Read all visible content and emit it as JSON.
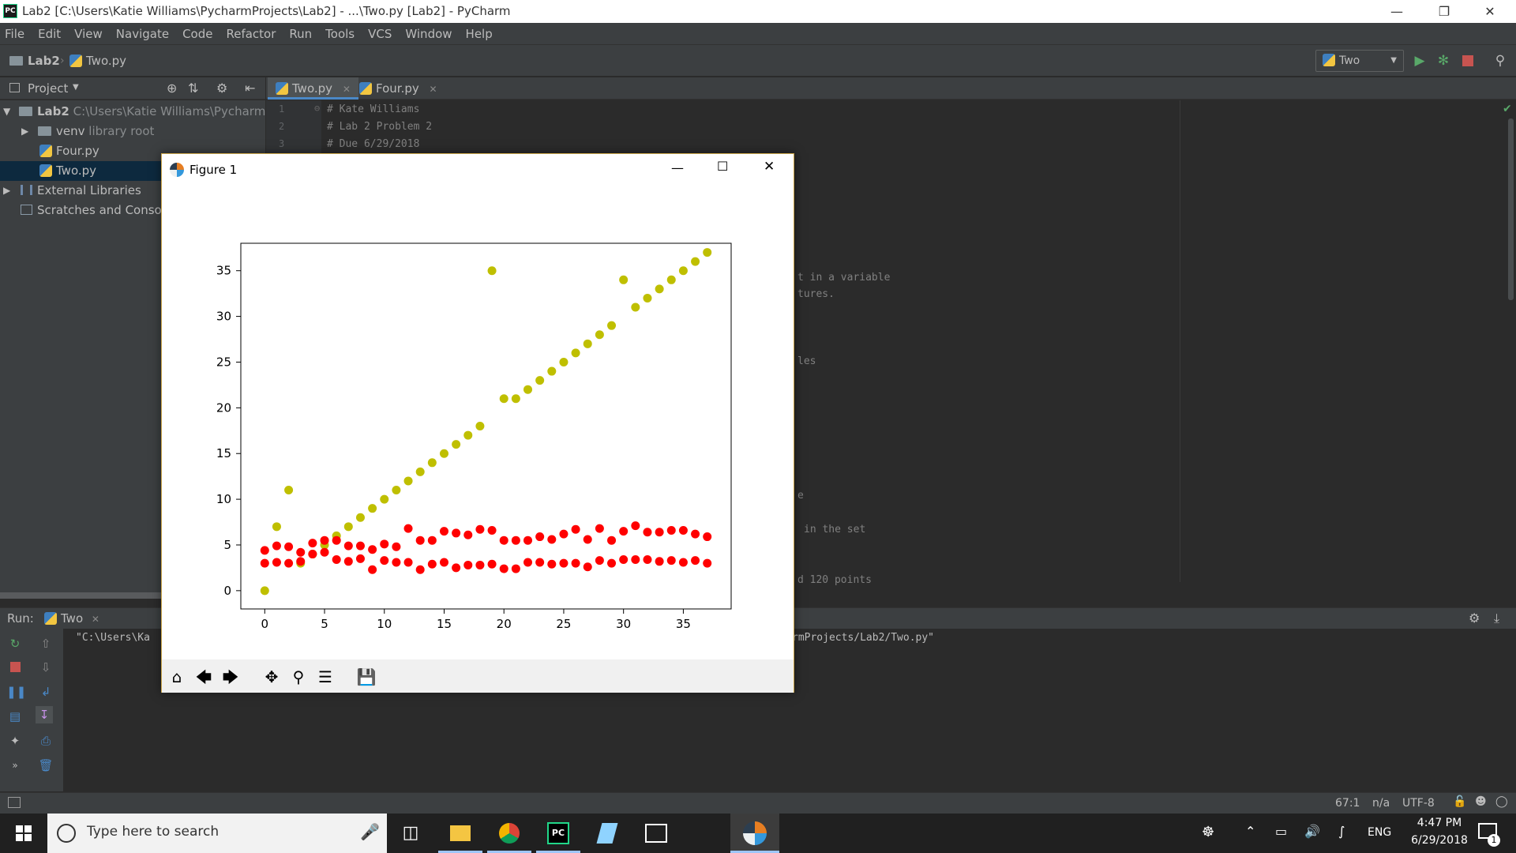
{
  "window": {
    "title": "Lab2 [C:\\Users\\Katie Williams\\PycharmProjects\\Lab2] - ...\\Two.py [Lab2] - PyCharm",
    "app_icon_label": "PC"
  },
  "menu": [
    "File",
    "Edit",
    "View",
    "Navigate",
    "Code",
    "Refactor",
    "Run",
    "Tools",
    "VCS",
    "Window",
    "Help"
  ],
  "navbar": {
    "crumb_project": "Lab2",
    "crumb_file": "Two.py",
    "run_config": "Two"
  },
  "project_panel": {
    "header": "Project",
    "items": [
      {
        "label": "Lab2",
        "path": "C:\\Users\\Katie Williams\\PycharmProje"
      },
      {
        "label": "venv",
        "extra": "library root"
      },
      {
        "label": "Four.py"
      },
      {
        "label": "Two.py"
      },
      {
        "label": "External Libraries"
      },
      {
        "label": "Scratches and Consoles"
      }
    ]
  },
  "editor": {
    "tabs": [
      {
        "label": "Two.py",
        "active": true
      },
      {
        "label": "Four.py",
        "active": false
      }
    ],
    "line_numbers": [
      "1",
      "2",
      "3"
    ],
    "lines": [
      "# Kate Williams",
      "# Lab 2 Problem 2",
      "# Due 6/29/2018"
    ],
    "fragments": [
      "t in a variable",
      "tures.",
      "les",
      "e",
      "in the set",
      "d 120 points"
    ]
  },
  "run_panel": {
    "label": "Run:",
    "tab": "Two",
    "output_left": "\"C:\\Users\\Ka",
    "output_right": "rmProjects/Lab2/Two.py\""
  },
  "status_bar": {
    "position": "67:1",
    "na": "n/a",
    "encoding": "UTF-8"
  },
  "taskbar": {
    "search_placeholder": "Type here to search",
    "language": "ENG",
    "time": "4:47 PM",
    "date": "6/29/2018",
    "notification_count": "1"
  },
  "figure": {
    "title": "Figure 1"
  },
  "chart_data": {
    "type": "scatter",
    "title": "",
    "xlabel": "",
    "ylabel": "",
    "xlim": [
      -2,
      39
    ],
    "ylim": [
      -2,
      38
    ],
    "xticks": [
      0,
      5,
      10,
      15,
      20,
      25,
      30,
      35
    ],
    "yticks": [
      0,
      5,
      10,
      15,
      20,
      25,
      30,
      35
    ],
    "grid": false,
    "series": [
      {
        "color": "#bfbf00",
        "points": [
          [
            0,
            0
          ],
          [
            1,
            7
          ],
          [
            2,
            11
          ],
          [
            3,
            3
          ],
          [
            4,
            4
          ],
          [
            5,
            5
          ],
          [
            6,
            6
          ],
          [
            7,
            7
          ],
          [
            8,
            8
          ],
          [
            9,
            9
          ],
          [
            10,
            10
          ],
          [
            11,
            11
          ],
          [
            12,
            12
          ],
          [
            13,
            13
          ],
          [
            14,
            14
          ],
          [
            15,
            15
          ],
          [
            16,
            16
          ],
          [
            17,
            17
          ],
          [
            18,
            18
          ],
          [
            19,
            35
          ],
          [
            20,
            21
          ],
          [
            21,
            21
          ],
          [
            22,
            22
          ],
          [
            23,
            23
          ],
          [
            24,
            24
          ],
          [
            25,
            25
          ],
          [
            26,
            26
          ],
          [
            27,
            27
          ],
          [
            28,
            28
          ],
          [
            29,
            29
          ],
          [
            30,
            34
          ],
          [
            31,
            31
          ],
          [
            32,
            32
          ],
          [
            33,
            33
          ],
          [
            34,
            34
          ],
          [
            35,
            35
          ],
          [
            36,
            36
          ],
          [
            37,
            37
          ]
        ]
      },
      {
        "color": "#ff0000",
        "points": [
          [
            0,
            4.4
          ],
          [
            1,
            4.9
          ],
          [
            2,
            4.8
          ],
          [
            3,
            4.2
          ],
          [
            4,
            5.2
          ],
          [
            5,
            5.5
          ],
          [
            6,
            5.5
          ],
          [
            7,
            4.9
          ],
          [
            8,
            4.9
          ],
          [
            9,
            4.5
          ],
          [
            10,
            5.1
          ],
          [
            11,
            4.8
          ],
          [
            12,
            6.8
          ],
          [
            13,
            5.5
          ],
          [
            14,
            5.5
          ],
          [
            15,
            6.5
          ],
          [
            16,
            6.3
          ],
          [
            17,
            6.1
          ],
          [
            18,
            6.7
          ],
          [
            19,
            6.6
          ],
          [
            20,
            5.5
          ],
          [
            21,
            5.5
          ],
          [
            22,
            5.5
          ],
          [
            23,
            5.9
          ],
          [
            24,
            5.6
          ],
          [
            25,
            6.2
          ],
          [
            26,
            6.7
          ],
          [
            27,
            5.6
          ],
          [
            28,
            6.8
          ],
          [
            29,
            5.5
          ],
          [
            30,
            6.5
          ],
          [
            31,
            7.1
          ],
          [
            32,
            6.4
          ],
          [
            33,
            6.4
          ],
          [
            34,
            6.6
          ],
          [
            35,
            6.6
          ],
          [
            36,
            6.2
          ],
          [
            37,
            5.9
          ],
          [
            0,
            3.0
          ],
          [
            1,
            3.1
          ],
          [
            2,
            3.0
          ],
          [
            3,
            3.2
          ],
          [
            4,
            4.0
          ],
          [
            5,
            4.2
          ],
          [
            6,
            3.4
          ],
          [
            7,
            3.2
          ],
          [
            8,
            3.5
          ],
          [
            9,
            2.3
          ],
          [
            10,
            3.3
          ],
          [
            11,
            3.1
          ],
          [
            12,
            3.1
          ],
          [
            13,
            2.3
          ],
          [
            14,
            2.9
          ],
          [
            15,
            3.1
          ],
          [
            16,
            2.5
          ],
          [
            17,
            2.8
          ],
          [
            18,
            2.8
          ],
          [
            19,
            2.9
          ],
          [
            20,
            2.4
          ],
          [
            21,
            2.4
          ],
          [
            22,
            3.1
          ],
          [
            23,
            3.1
          ],
          [
            24,
            2.9
          ],
          [
            25,
            3.0
          ],
          [
            26,
            3.0
          ],
          [
            27,
            2.6
          ],
          [
            28,
            3.3
          ],
          [
            29,
            3.0
          ],
          [
            30,
            3.4
          ],
          [
            31,
            3.4
          ],
          [
            32,
            3.4
          ],
          [
            33,
            3.2
          ],
          [
            34,
            3.3
          ],
          [
            35,
            3.1
          ],
          [
            36,
            3.3
          ],
          [
            37,
            3.0
          ]
        ]
      }
    ]
  }
}
